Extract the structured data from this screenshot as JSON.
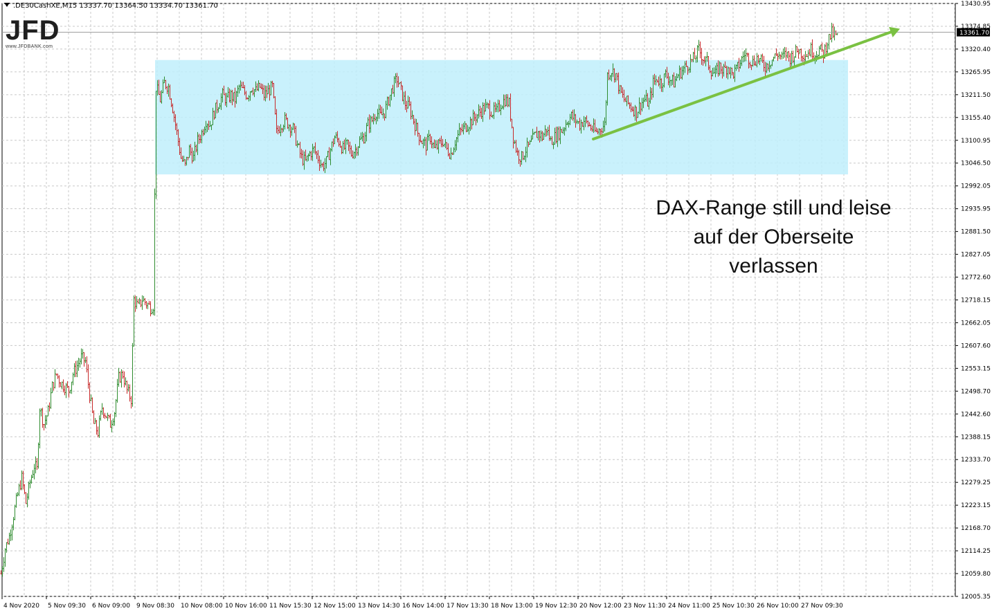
{
  "header": {
    "symbol_line": ".DE30CashXE,M15  13337.70 13364.50 13334.70 13361.70"
  },
  "logo": {
    "mark": "JFD",
    "url": "www.JFDBANK.com"
  },
  "annotation": {
    "lines": [
      "DAX-Range still und leise",
      "auf der Oberseite",
      "verlassen"
    ]
  },
  "colors": {
    "bull": "#2e8b2e",
    "bear": "#c62828",
    "range_box": "#bfeefb",
    "arrow": "#7ac142",
    "grid": "#c8c8c8",
    "price_tag_bg": "#000000"
  },
  "chart_data": {
    "type": "candlestick",
    "instrument": ".DE30CashXE",
    "timeframe": "M15",
    "current_price": "13361.70",
    "ylim": [
      12005.35,
      13430.95
    ],
    "y_ticks": [
      "13430.95",
      "13374.85",
      "13320.40",
      "13265.95",
      "13211.50",
      "13155.40",
      "13100.95",
      "13046.50",
      "12992.05",
      "12935.95",
      "12881.50",
      "12827.05",
      "12772.60",
      "12718.15",
      "12662.05",
      "12607.60",
      "12553.15",
      "12498.70",
      "12442.60",
      "12388.15",
      "12333.70",
      "12279.25",
      "12223.15",
      "12168.70",
      "12114.25",
      "12059.80",
      "12005.35"
    ],
    "x_ticks": [
      "4 Nov 2020",
      "5 Nov 09:30",
      "6 Nov 09:00",
      "9 Nov 08:30",
      "10 Nov 08:00",
      "10 Nov 16:00",
      "11 Nov 15:30",
      "12 Nov 15:00",
      "13 Nov 14:30",
      "16 Nov 14:00",
      "17 Nov 13:30",
      "18 Nov 13:00",
      "19 Nov 12:30",
      "20 Nov 12:00",
      "23 Nov 11:30",
      "24 Nov 11:00",
      "25 Nov 10:30",
      "26 Nov 10:00",
      "27 Nov 09:30"
    ],
    "price_path": [
      [
        0,
        12060
      ],
      [
        6,
        12120
      ],
      [
        12,
        12150
      ],
      [
        18,
        12200
      ],
      [
        24,
        12250
      ],
      [
        30,
        12290
      ],
      [
        36,
        12230
      ],
      [
        42,
        12280
      ],
      [
        48,
        12320
      ],
      [
        52,
        12310
      ],
      [
        56,
        12460
      ],
      [
        62,
        12420
      ],
      [
        68,
        12450
      ],
      [
        74,
        12510
      ],
      [
        80,
        12540
      ],
      [
        86,
        12520
      ],
      [
        92,
        12510
      ],
      [
        98,
        12500
      ],
      [
        104,
        12540
      ],
      [
        110,
        12560
      ],
      [
        116,
        12580
      ],
      [
        122,
        12570
      ],
      [
        128,
        12490
      ],
      [
        134,
        12420
      ],
      [
        140,
        12400
      ],
      [
        146,
        12460
      ],
      [
        152,
        12440
      ],
      [
        158,
        12420
      ],
      [
        164,
        12450
      ],
      [
        170,
        12530
      ],
      [
        176,
        12540
      ],
      [
        182,
        12500
      ],
      [
        188,
        12480
      ],
      [
        192,
        12720
      ],
      [
        198,
        12700
      ],
      [
        204,
        12720
      ],
      [
        210,
        12710
      ],
      [
        216,
        12700
      ],
      [
        220,
        12705
      ],
      [
        224,
        13230
      ],
      [
        230,
        13200
      ],
      [
        236,
        13240
      ],
      [
        242,
        13230
      ],
      [
        248,
        13180
      ],
      [
        254,
        13120
      ],
      [
        260,
        13060
      ],
      [
        266,
        13040
      ],
      [
        272,
        13080
      ],
      [
        278,
        13060
      ],
      [
        284,
        13100
      ],
      [
        290,
        13120
      ],
      [
        296,
        13150
      ],
      [
        302,
        13140
      ],
      [
        308,
        13170
      ],
      [
        314,
        13190
      ],
      [
        320,
        13210
      ],
      [
        326,
        13200
      ],
      [
        332,
        13210
      ],
      [
        338,
        13200
      ],
      [
        344,
        13230
      ],
      [
        350,
        13220
      ],
      [
        356,
        13210
      ],
      [
        362,
        13230
      ],
      [
        368,
        13220
      ],
      [
        374,
        13230
      ],
      [
        380,
        13210
      ],
      [
        386,
        13220
      ],
      [
        392,
        13230
      ],
      [
        398,
        13120
      ],
      [
        404,
        13140
      ],
      [
        410,
        13150
      ],
      [
        416,
        13140
      ],
      [
        422,
        13130
      ],
      [
        428,
        13090
      ],
      [
        434,
        13060
      ],
      [
        440,
        13050
      ],
      [
        446,
        13070
      ],
      [
        452,
        13080
      ],
      [
        458,
        13060
      ],
      [
        464,
        13040
      ],
      [
        470,
        13050
      ],
      [
        476,
        13080
      ],
      [
        482,
        13110
      ],
      [
        488,
        13100
      ],
      [
        494,
        13080
      ],
      [
        500,
        13090
      ],
      [
        506,
        13070
      ],
      [
        512,
        13080
      ],
      [
        518,
        13100
      ],
      [
        524,
        13110
      ],
      [
        530,
        13140
      ],
      [
        536,
        13150
      ],
      [
        542,
        13170
      ],
      [
        548,
        13160
      ],
      [
        554,
        13170
      ],
      [
        560,
        13200
      ],
      [
        566,
        13230
      ],
      [
        572,
        13250
      ],
      [
        578,
        13220
      ],
      [
        584,
        13190
      ],
      [
        590,
        13180
      ],
      [
        596,
        13150
      ],
      [
        602,
        13120
      ],
      [
        608,
        13100
      ],
      [
        614,
        13090
      ],
      [
        620,
        13110
      ],
      [
        626,
        13080
      ],
      [
        632,
        13090
      ],
      [
        638,
        13100
      ],
      [
        644,
        13080
      ],
      [
        650,
        13070
      ],
      [
        656,
        13100
      ],
      [
        662,
        13120
      ],
      [
        668,
        13130
      ],
      [
        674,
        13140
      ],
      [
        680,
        13150
      ],
      [
        686,
        13160
      ],
      [
        692,
        13170
      ],
      [
        698,
        13180
      ],
      [
        704,
        13180
      ],
      [
        710,
        13170
      ],
      [
        716,
        13170
      ],
      [
        722,
        13190
      ],
      [
        728,
        13200
      ],
      [
        734,
        13190
      ],
      [
        740,
        13110
      ],
      [
        746,
        13070
      ],
      [
        752,
        13060
      ],
      [
        758,
        13080
      ],
      [
        764,
        13090
      ],
      [
        770,
        13110
      ],
      [
        776,
        13120
      ],
      [
        782,
        13110
      ],
      [
        788,
        13130
      ],
      [
        794,
        13100
      ],
      [
        800,
        13110
      ],
      [
        806,
        13120
      ],
      [
        812,
        13130
      ],
      [
        818,
        13150
      ],
      [
        824,
        13160
      ],
      [
        830,
        13150
      ],
      [
        836,
        13140
      ],
      [
        842,
        13150
      ],
      [
        848,
        13140
      ],
      [
        854,
        13130
      ],
      [
        860,
        13120
      ],
      [
        866,
        13130
      ],
      [
        872,
        13140
      ],
      [
        876,
        13260
      ],
      [
        882,
        13270
      ],
      [
        888,
        13260
      ],
      [
        894,
        13220
      ],
      [
        900,
        13200
      ],
      [
        906,
        13190
      ],
      [
        912,
        13180
      ],
      [
        918,
        13170
      ],
      [
        924,
        13190
      ],
      [
        930,
        13200
      ],
      [
        936,
        13190
      ],
      [
        942,
        13240
      ],
      [
        948,
        13250
      ],
      [
        954,
        13240
      ],
      [
        960,
        13260
      ],
      [
        966,
        13250
      ],
      [
        972,
        13240
      ],
      [
        978,
        13260
      ],
      [
        984,
        13270
      ],
      [
        990,
        13280
      ],
      [
        996,
        13290
      ],
      [
        1002,
        13300
      ],
      [
        1008,
        13320
      ],
      [
        1014,
        13300
      ],
      [
        1020,
        13290
      ],
      [
        1026,
        13270
      ],
      [
        1032,
        13260
      ],
      [
        1038,
        13280
      ],
      [
        1044,
        13270
      ],
      [
        1050,
        13280
      ],
      [
        1056,
        13260
      ],
      [
        1062,
        13270
      ],
      [
        1068,
        13290
      ],
      [
        1074,
        13310
      ],
      [
        1080,
        13300
      ],
      [
        1086,
        13290
      ],
      [
        1092,
        13300
      ],
      [
        1098,
        13290
      ],
      [
        1104,
        13280
      ],
      [
        1110,
        13290
      ],
      [
        1116,
        13300
      ],
      [
        1122,
        13310
      ],
      [
        1128,
        13300
      ],
      [
        1134,
        13310
      ],
      [
        1140,
        13300
      ],
      [
        1146,
        13310
      ],
      [
        1152,
        13320
      ],
      [
        1158,
        13310
      ],
      [
        1164,
        13310
      ],
      [
        1170,
        13320
      ],
      [
        1176,
        13310
      ],
      [
        1182,
        13320
      ],
      [
        1188,
        13310
      ],
      [
        1194,
        13340
      ],
      [
        1200,
        13360
      ],
      [
        1206,
        13350
      ],
      [
        1210,
        13362
      ]
    ],
    "range_box": {
      "y_low": 13020,
      "y_high": 13295,
      "x_start_index": 224,
      "x_end_index": 1225
    },
    "trend_arrow": {
      "from": [
        857,
        13105
      ],
      "to": [
        1300,
        13370
      ]
    }
  }
}
